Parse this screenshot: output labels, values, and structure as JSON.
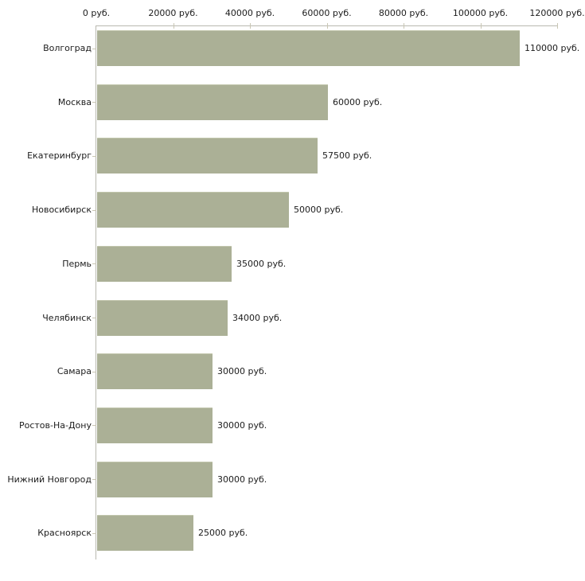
{
  "chart_data": {
    "type": "bar",
    "orientation": "horizontal",
    "title": "",
    "xlabel": "",
    "ylabel": "",
    "categories": [
      "Волгоград",
      "Москва",
      "Екатеринбург",
      "Новосибирск",
      "Пермь",
      "Челябинск",
      "Самара",
      "Ростов-На-Дону",
      "Нижний Новгород",
      "Красноярск"
    ],
    "values": [
      110000,
      60000,
      57500,
      50000,
      35000,
      34000,
      30000,
      30000,
      30000,
      25000
    ],
    "value_labels": [
      "110000 руб.",
      "60000 руб.",
      "57500 руб.",
      "50000 руб.",
      "35000 руб.",
      "34000 руб.",
      "30000 руб.",
      "30000 руб.",
      "30000 руб.",
      "25000 руб."
    ],
    "x_ticks": [
      0,
      20000,
      40000,
      60000,
      80000,
      100000,
      120000
    ],
    "x_tick_labels": [
      "0 руб.",
      "20000 руб.",
      "40000 руб.",
      "60000 руб.",
      "80000 руб.",
      "100000 руб.",
      "120000 руб."
    ],
    "xlim": [
      0,
      120000
    ],
    "grid": false,
    "legend": null,
    "colors": {
      "bar": "#abb096",
      "axis_line": "#b9b9b0",
      "tick": "#c9c6b4",
      "text": "#1c1c1c",
      "background": "#ffffff"
    }
  }
}
